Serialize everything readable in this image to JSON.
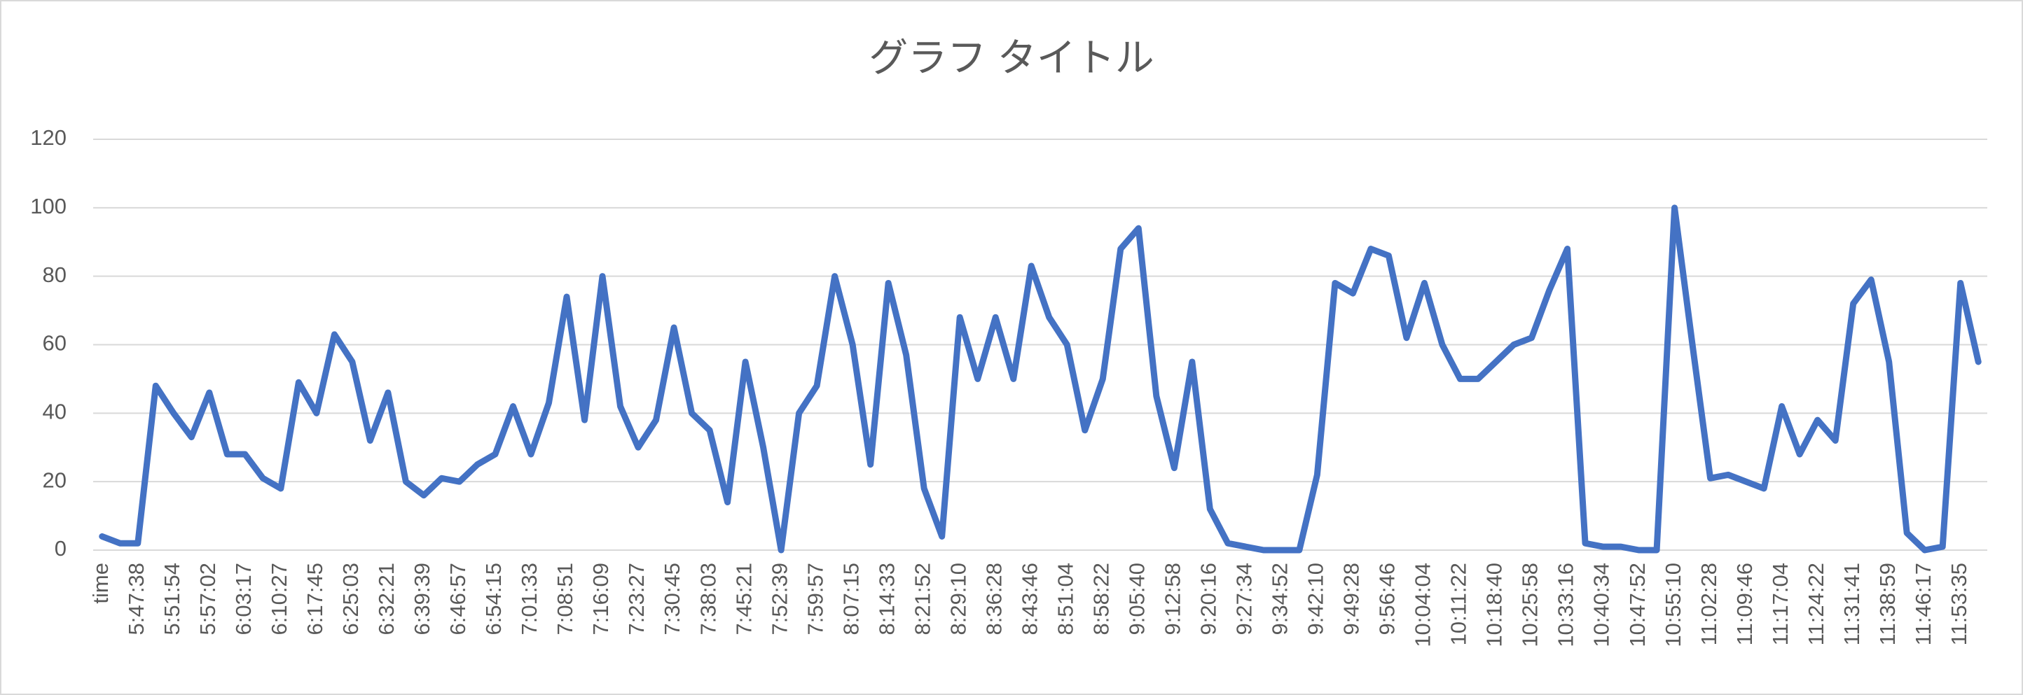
{
  "chart_data": {
    "type": "line",
    "title": "グラフ タイトル",
    "categories": [
      "time",
      null,
      "5:47:38",
      null,
      "5:51:54",
      null,
      "5:57:02",
      null,
      "6:03:17",
      null,
      "6:10:27",
      null,
      "6:17:45",
      null,
      "6:25:03",
      null,
      "6:32:21",
      null,
      "6:39:39",
      null,
      "6:46:57",
      null,
      "6:54:15",
      null,
      "7:01:33",
      null,
      "7:08:51",
      null,
      "7:16:09",
      null,
      "7:23:27",
      null,
      "7:30:45",
      null,
      "7:38:03",
      null,
      "7:45:21",
      null,
      "7:52:39",
      null,
      "7:59:57",
      null,
      "8:07:15",
      null,
      "8:14:33",
      null,
      "8:21:52",
      null,
      "8:29:10",
      null,
      "8:36:28",
      null,
      "8:43:46",
      null,
      "8:51:04",
      null,
      "8:58:22",
      null,
      "9:05:40",
      null,
      "9:12:58",
      null,
      "9:20:16",
      null,
      "9:27:34",
      null,
      "9:34:52",
      null,
      "9:42:10",
      null,
      "9:49:28",
      null,
      "9:56:46",
      null,
      "10:04:04",
      null,
      "10:11:22",
      null,
      "10:18:40",
      null,
      "10:25:58",
      null,
      "10:33:16",
      null,
      "10:40:34",
      null,
      "10:47:52",
      null,
      "10:55:10",
      null,
      "11:02:28",
      null,
      "11:09:46",
      null,
      "11:17:04",
      null,
      "11:24:22",
      null,
      "11:31:41",
      null,
      "11:38:59",
      null,
      "11:46:17",
      null,
      "11:53:35",
      null
    ],
    "series": [
      {
        "color": "#4472c4",
        "values": [
          4,
          2,
          2,
          48,
          40,
          33,
          46,
          28,
          28,
          21,
          18,
          49,
          40,
          63,
          55,
          32,
          46,
          20,
          16,
          21,
          20,
          25,
          28,
          42,
          28,
          43,
          74,
          38,
          80,
          42,
          30,
          38,
          65,
          40,
          35,
          14,
          55,
          30,
          0,
          40,
          48,
          80,
          60,
          25,
          78,
          57,
          18,
          4,
          68,
          50,
          68,
          50,
          83,
          68,
          60,
          35,
          50,
          88,
          94,
          45,
          24,
          55,
          12,
          2,
          1,
          0,
          0,
          0,
          22,
          78,
          75,
          88,
          86,
          62,
          78,
          60,
          50,
          50,
          55,
          60,
          62,
          76,
          88,
          2,
          1,
          1,
          0,
          0,
          100,
          60,
          21,
          22,
          20,
          18,
          42,
          28,
          38,
          32,
          72,
          79,
          55,
          5,
          0,
          1,
          78,
          55
        ]
      }
    ],
    "ylim": [
      0,
      120
    ],
    "yticks": [
      0,
      20,
      40,
      60,
      80,
      100,
      120
    ],
    "grid": true
  }
}
